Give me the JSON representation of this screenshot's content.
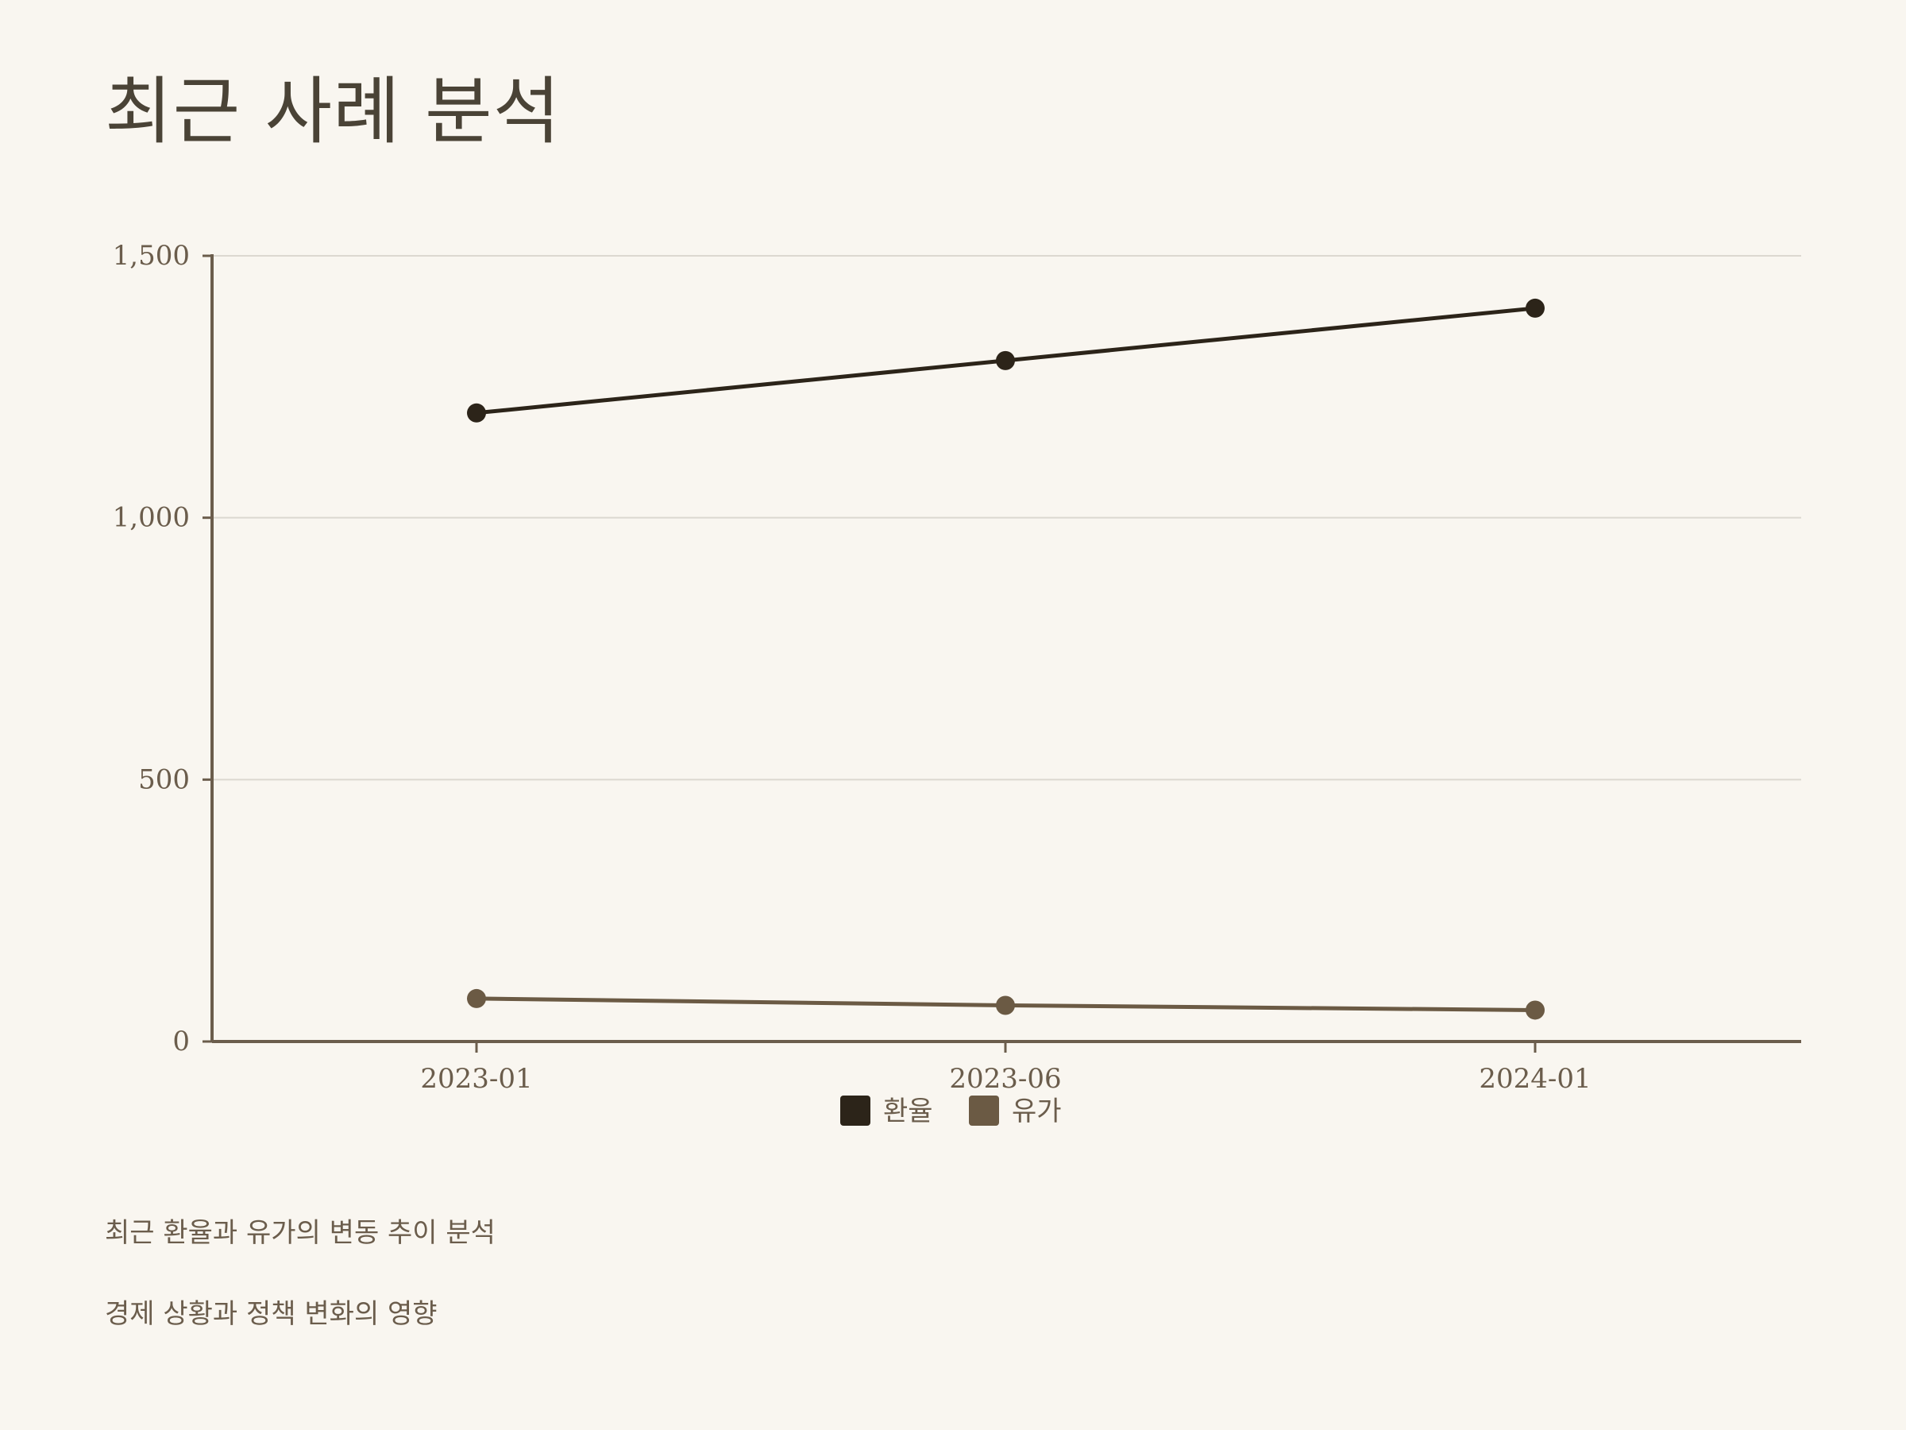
{
  "title": "최근 사례 분석",
  "chart_data": {
    "type": "line",
    "categories": [
      "2023-01",
      "2023-06",
      "2024-01"
    ],
    "series": [
      {
        "name": "환율",
        "values": [
          1200,
          1300,
          1400
        ],
        "color": "#2c2419"
      },
      {
        "name": "유가",
        "values": [
          82,
          69,
          60
        ],
        "color": "#6b5a44"
      }
    ],
    "ylim": [
      0,
      1500
    ],
    "yticks": [
      0,
      500,
      1000,
      1500
    ],
    "ytick_labels": [
      "0",
      "500",
      "1,000",
      "1,500"
    ],
    "grid": true,
    "legend_position": "bottom-center",
    "title": "",
    "xlabel": "",
    "ylabel": ""
  },
  "notes": [
    "최근 환율과 유가의 변동 추이 분석",
    "경제 상황과 정책 변화의 영향"
  ],
  "colors": {
    "background": "#f9f6f0",
    "axis": "#6b5d4c",
    "grid": "#dcd8d0",
    "text": "#6b5d4c",
    "title": "#4a4336"
  }
}
